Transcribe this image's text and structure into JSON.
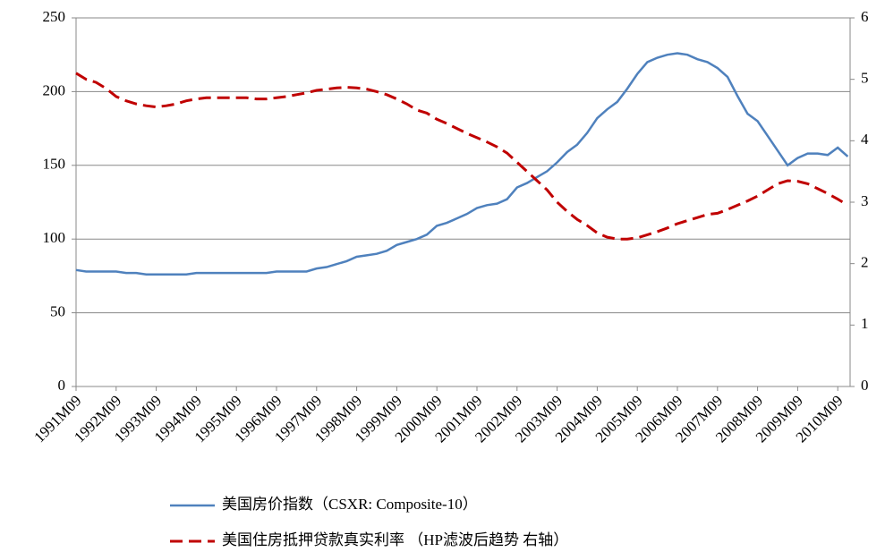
{
  "chart_data": {
    "type": "line",
    "categories": [
      "1991M09",
      null,
      null,
      null,
      "1992M09",
      null,
      null,
      null,
      "1993M09",
      null,
      null,
      null,
      "1994M09",
      null,
      null,
      null,
      "1995M09",
      null,
      null,
      null,
      "1996M09",
      null,
      null,
      null,
      "1997M09",
      null,
      null,
      null,
      "1998M09",
      null,
      null,
      null,
      "1999M09",
      null,
      null,
      null,
      "2000M09",
      null,
      null,
      null,
      "2001M09",
      null,
      null,
      null,
      "2002M09",
      null,
      null,
      null,
      "2003M09",
      null,
      null,
      null,
      "2004M09",
      null,
      null,
      null,
      "2005M09",
      null,
      null,
      null,
      "2006M09",
      null,
      null,
      null,
      "2007M09",
      null,
      null,
      null,
      "2008M09",
      null,
      null,
      null,
      "2009M09",
      null,
      null,
      null,
      "2010M09",
      null
    ],
    "series": [
      {
        "name": "美国房价指数（CSXR: Composite-10）",
        "color": "#4f81bd",
        "dash": false,
        "values": [
          79,
          78,
          78,
          78,
          78,
          77,
          77,
          76,
          76,
          76,
          76,
          76,
          77,
          77,
          77,
          77,
          77,
          77,
          77,
          77,
          78,
          78,
          78,
          78,
          80,
          81,
          83,
          85,
          88,
          89,
          90,
          92,
          96,
          98,
          100,
          103,
          109,
          111,
          114,
          117,
          121,
          123,
          124,
          127,
          135,
          138,
          142,
          146,
          152,
          159,
          164,
          172,
          182,
          188,
          193,
          202,
          212,
          220,
          223,
          225,
          226,
          225,
          222,
          220,
          216,
          210,
          197,
          185,
          180,
          170,
          160,
          150,
          155,
          158,
          158,
          157,
          162,
          156
        ]
      },
      {
        "name": "美国住房抵押贷款真实利率 （HP滤波后趋势 右轴）",
        "color": "#c00000",
        "dash": true,
        "axis": "y2",
        "values": [
          5.1,
          5.0,
          4.95,
          4.85,
          4.72,
          4.65,
          4.6,
          4.57,
          4.55,
          4.57,
          4.6,
          4.65,
          4.68,
          4.7,
          4.7,
          4.7,
          4.7,
          4.7,
          4.68,
          4.68,
          4.7,
          4.72,
          4.75,
          4.78,
          4.82,
          4.84,
          4.86,
          4.87,
          4.86,
          4.84,
          4.8,
          4.75,
          4.68,
          4.6,
          4.5,
          4.45,
          4.35,
          4.28,
          4.2,
          4.12,
          4.05,
          3.98,
          3.9,
          3.8,
          3.65,
          3.5,
          3.35,
          3.2,
          3.0,
          2.85,
          2.72,
          2.62,
          2.5,
          2.43,
          2.4,
          2.4,
          2.42,
          2.47,
          2.52,
          2.58,
          2.65,
          2.7,
          2.75,
          2.8,
          2.82,
          2.88,
          2.95,
          3.02,
          3.1,
          3.2,
          3.3,
          3.35,
          3.34,
          3.3,
          3.22,
          3.14,
          3.05,
          2.95
        ]
      }
    ],
    "ylim": [
      0,
      250
    ],
    "yticks": [
      0,
      50,
      100,
      150,
      200,
      250
    ],
    "y2lim": [
      0,
      6
    ],
    "y2ticks": [
      0,
      1,
      2,
      3,
      4,
      5,
      6
    ],
    "grid": true
  }
}
